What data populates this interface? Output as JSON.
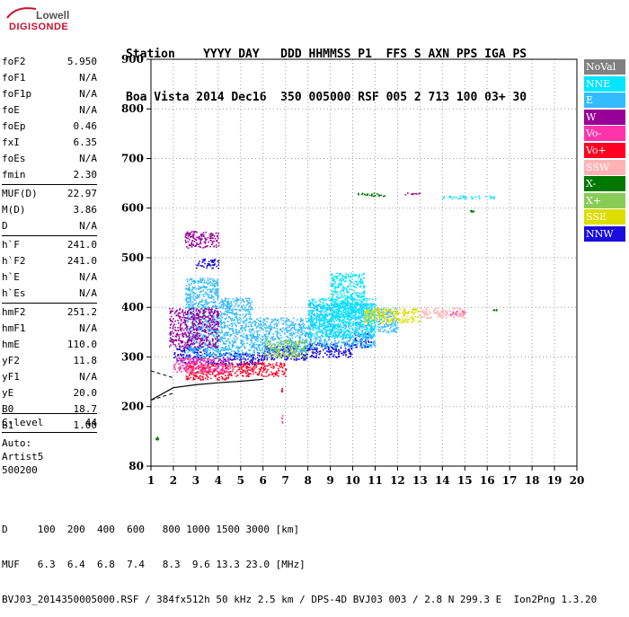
{
  "logo": {
    "line1": "Lowell",
    "line2": "DIGISONDE"
  },
  "header": {
    "line1": "Station    YYYY DAY   DDD HHMMSS P1  FFS S AXN PPS IGA PS",
    "line2": "Boa Vista 2014 Dec16  350 005000 RSF 005 2 713 100 03+ 30"
  },
  "params": [
    {
      "k": "foF2",
      "v": "5.950"
    },
    {
      "k": "foF1",
      "v": "N/A"
    },
    {
      "k": "foF1p",
      "v": "N/A"
    },
    {
      "k": "foE",
      "v": "N/A"
    },
    {
      "k": "foEp",
      "v": "0.46"
    },
    {
      "k": "fxI",
      "v": "6.35"
    },
    {
      "k": "foEs",
      "v": "N/A"
    },
    {
      "k": "fmin",
      "v": "2.30"
    },
    {
      "k": "MUF(D)",
      "v": "22.97"
    },
    {
      "k": "M(D)",
      "v": "3.86"
    },
    {
      "k": "D",
      "v": "N/A"
    },
    {
      "k": "h`F",
      "v": "241.0"
    },
    {
      "k": "h`F2",
      "v": "241.0"
    },
    {
      "k": "h`E",
      "v": "N/A"
    },
    {
      "k": "h`Es",
      "v": "N/A"
    },
    {
      "k": "hmF2",
      "v": "251.2"
    },
    {
      "k": "hmF1",
      "v": "N/A"
    },
    {
      "k": "hmE",
      "v": "110.0"
    },
    {
      "k": "yF2",
      "v": "11.8"
    },
    {
      "k": "yF1",
      "v": "N/A"
    },
    {
      "k": "yE",
      "v": "20.0"
    },
    {
      "k": "B0",
      "v": "18.7"
    },
    {
      "k": "B1",
      "v": "1.00"
    }
  ],
  "clevel": {
    "k": "C-level",
    "v": "44"
  },
  "auto": {
    "l1": "Auto:",
    "l2": "Artist5",
    "l3": "500200"
  },
  "legend": [
    {
      "label": "NoVal",
      "color": "#808080"
    },
    {
      "label": "NNE",
      "color": "#00e5ff"
    },
    {
      "label": "E",
      "color": "#33bbff"
    },
    {
      "label": "W",
      "color": "#990099"
    },
    {
      "label": "Vo-",
      "color": "#ff33aa"
    },
    {
      "label": "Vo+",
      "color": "#ff0022"
    },
    {
      "label": "SSW",
      "color": "#ffb3b3"
    },
    {
      "label": "X-",
      "color": "#007700"
    },
    {
      "label": "X+",
      "color": "#88cc55"
    },
    {
      "label": "SSE",
      "color": "#dddd00"
    },
    {
      "label": "NNW",
      "color": "#1a0ddd"
    }
  ],
  "footer": {
    "line1": "D     100  200  400  600   800 1000 1500 3000 [km]",
    "line2": "MUF   6.3  6.4  6.8  7.4   8.3  9.6 13.3 23.0 [MHz]",
    "line3": "BVJ03_2014350005000.RSF / 384fx512h 50 kHz 2.5 km / DPS-4D BVJ03 003 / 2.8 N 299.3 E  Ion2Png 1.3.20"
  },
  "chart_data": {
    "type": "scatter",
    "xlabel": "",
    "ylabel": "",
    "xlim": [
      1,
      20
    ],
    "ylim": [
      80,
      900
    ],
    "xticks": [
      1,
      2,
      3,
      4,
      5,
      6,
      7,
      8,
      9,
      10,
      11,
      12,
      13,
      14,
      15,
      16,
      17,
      18,
      19,
      20
    ],
    "yticks": [
      80,
      200,
      300,
      400,
      500,
      600,
      700,
      800,
      900
    ],
    "grid": true,
    "series": [
      {
        "name": "NNW",
        "color": "#1a0ddd",
        "regions": [
          [
            2,
            3.5,
            290,
            320
          ],
          [
            3.5,
            6,
            285,
            310
          ],
          [
            6,
            8,
            295,
            325
          ],
          [
            8,
            10,
            300,
            330
          ],
          [
            10,
            10.8,
            320,
            350
          ],
          [
            3,
            4,
            480,
            500
          ]
        ]
      },
      {
        "name": "E",
        "color": "#33bbff",
        "regions": [
          [
            2.5,
            4,
            300,
            460
          ],
          [
            4,
            5.5,
            300,
            420
          ],
          [
            5.5,
            8,
            310,
            380
          ],
          [
            8,
            11,
            320,
            410
          ],
          [
            11,
            12,
            350,
            400
          ]
        ]
      },
      {
        "name": "NNE",
        "color": "#00e5ff",
        "regions": [
          [
            8,
            11,
            340,
            420
          ],
          [
            9,
            10.5,
            380,
            470
          ],
          [
            14,
            16.3,
            620,
            626
          ]
        ]
      },
      {
        "name": "W",
        "color": "#990099",
        "regions": [
          [
            1.8,
            4,
            320,
            400
          ],
          [
            2.5,
            4,
            520,
            555
          ],
          [
            12.3,
            13,
            627,
            632
          ]
        ]
      },
      {
        "name": "Vo+",
        "color": "#ff0022",
        "regions": [
          [
            2.5,
            4.5,
            255,
            290
          ],
          [
            4.5,
            7,
            262,
            290
          ],
          [
            6.8,
            6.85,
            228,
            240
          ]
        ]
      },
      {
        "name": "Vo-",
        "color": "#ff33aa",
        "regions": [
          [
            2,
            4.5,
            270,
            300
          ],
          [
            6.8,
            6.85,
            165,
            190
          ],
          [
            14.3,
            15,
            385,
            395
          ]
        ]
      },
      {
        "name": "SSE",
        "color": "#dddd00",
        "regions": [
          [
            10.5,
            13,
            370,
            400
          ]
        ]
      },
      {
        "name": "X+",
        "color": "#88cc55",
        "regions": [
          [
            6,
            8,
            300,
            335
          ]
        ]
      },
      {
        "name": "X-",
        "color": "#007700",
        "regions": [
          [
            10.2,
            11.4,
            625,
            632
          ],
          [
            1.2,
            1.3,
            132,
            140
          ],
          [
            15.2,
            15.4,
            593,
            597
          ],
          [
            16.2,
            16.4,
            393,
            397
          ]
        ]
      },
      {
        "name": "SSW",
        "color": "#ffb3b3",
        "regions": [
          [
            13,
            15,
            380,
            400
          ]
        ]
      }
    ],
    "trace": [
      [
        1,
        213
      ],
      [
        2,
        238
      ],
      [
        3,
        244
      ],
      [
        4,
        248
      ],
      [
        5,
        251
      ],
      [
        6,
        255
      ]
    ],
    "trace_dashed": [
      [
        1,
        272
      ],
      [
        2,
        258
      ],
      [
        1,
        213
      ],
      [
        2,
        227
      ]
    ]
  }
}
